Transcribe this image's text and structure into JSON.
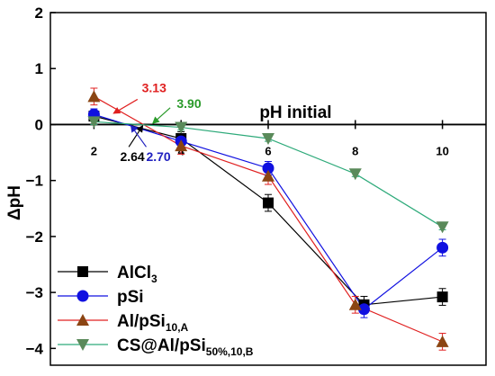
{
  "chart_data": {
    "type": "line",
    "xlabel": "pH initial",
    "ylabel": "ΔpH",
    "xlim": [
      1,
      11
    ],
    "ylim": [
      -4.3,
      2
    ],
    "x_ticks": [
      "2",
      "4",
      "6",
      "8",
      "10"
    ],
    "y_ticks": [
      "2",
      "1",
      "0",
      "−1",
      "−2",
      "−3",
      "−4"
    ],
    "series": [
      {
        "name": "AlCl",
        "name_sub": "3",
        "color": "#000000",
        "marker": "square",
        "x": [
          2.0,
          4.0,
          6.0,
          8.2,
          10.0
        ],
        "y": [
          0.15,
          -0.25,
          -1.4,
          -3.22,
          -3.08
        ],
        "err": [
          0.08,
          0.12,
          0.15,
          0.15,
          0.15
        ]
      },
      {
        "name": "pSi",
        "name_sub": "",
        "color": "#1010e0",
        "marker": "circle",
        "x": [
          2.0,
          4.0,
          6.0,
          8.2,
          10.0
        ],
        "y": [
          0.18,
          -0.3,
          -0.78,
          -3.3,
          -2.2
        ],
        "err": [
          0.1,
          0.12,
          0.12,
          0.15,
          0.15
        ]
      },
      {
        "name": "Al/pSi",
        "name_sub": "10,A",
        "color": "#e02020",
        "marker": "triangle-up",
        "marker_color": "#8b4513",
        "x": [
          2.0,
          4.0,
          6.0,
          8.0,
          10.0
        ],
        "y": [
          0.5,
          -0.38,
          -0.92,
          -3.22,
          -3.88
        ],
        "err": [
          0.15,
          0.15,
          0.15,
          0.15,
          0.15
        ]
      },
      {
        "name": "CS@Al/pSi",
        "name_sub": "50%,10,B",
        "color": "#2eaa7a",
        "marker": "triangle-down",
        "marker_color": "#5a8a5a",
        "x": [
          2.0,
          4.0,
          6.0,
          8.0,
          10.0
        ],
        "y": [
          0.05,
          -0.05,
          -0.25,
          -0.88,
          -1.83
        ],
        "err": [
          0.05,
          0.05,
          0.05,
          0.05,
          0.05
        ]
      }
    ],
    "annotations": [
      {
        "label": "3.13",
        "color": "#e02020",
        "text_x": 3.1,
        "text_y": 0.58,
        "arrow_from": [
          3.0,
          0.45
        ],
        "arrow_to": [
          2.45,
          0.2
        ]
      },
      {
        "label": "3.90",
        "color": "#2a9a2a",
        "text_x": 3.9,
        "text_y": 0.3,
        "arrow_from": [
          3.75,
          0.3
        ],
        "arrow_to": [
          3.35,
          0.02
        ]
      },
      {
        "label": "2.64",
        "color": "#000000",
        "text_x": 2.6,
        "text_y": -0.65,
        "arrow_from": [
          2.8,
          -0.4
        ],
        "arrow_to": [
          3.12,
          -0.02
        ]
      },
      {
        "label": "2.70",
        "color": "#2020c0",
        "text_x": 3.2,
        "text_y": -0.65,
        "arrow_from": [
          3.2,
          -0.4
        ],
        "arrow_to": [
          2.85,
          -0.02
        ]
      }
    ],
    "grid": false,
    "legend_position": "bottom-left"
  }
}
